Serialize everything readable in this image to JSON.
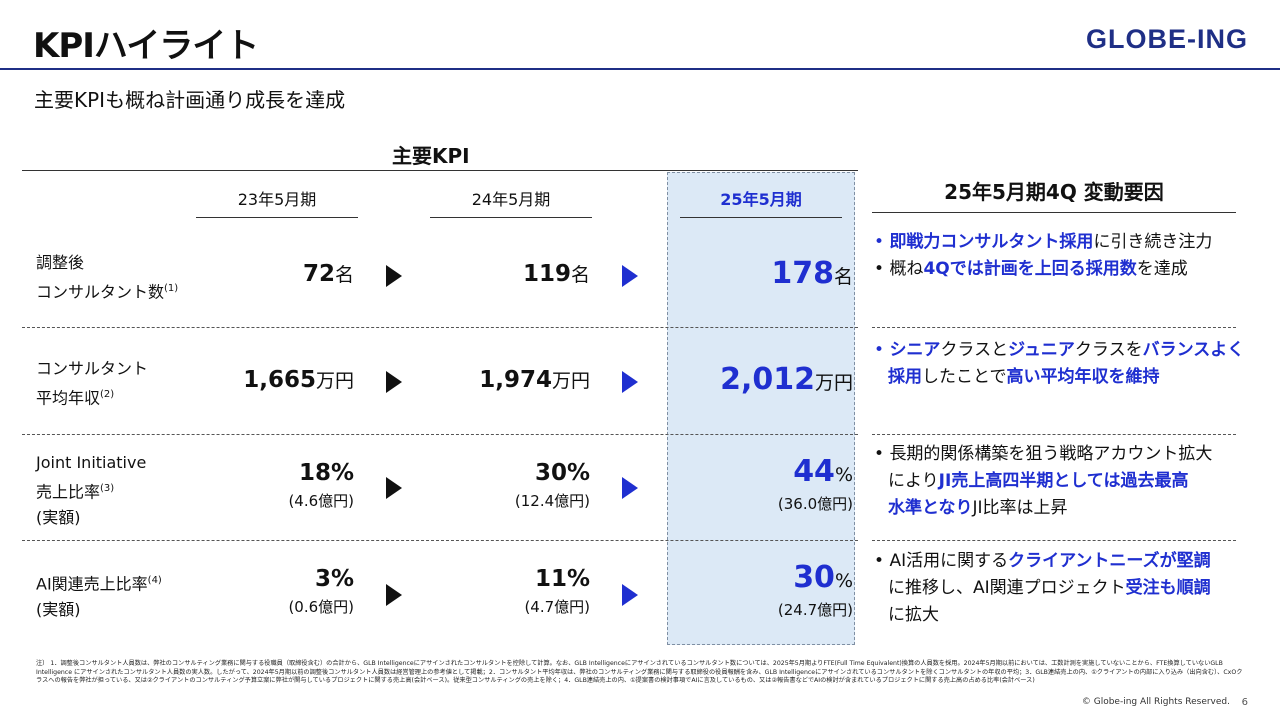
{
  "header": {
    "title": "KPIハイライト",
    "logo": "GLOBE-ING",
    "subtitle": "主要KPIも概ね計画通り成長を達成"
  },
  "table": {
    "heading": "主要KPI",
    "periods": [
      "23年5月期",
      "24年5月期",
      "25年5月期"
    ],
    "rows": [
      {
        "label1": "調整後",
        "label2": "コンサルタント数",
        "label3": "",
        "note": "(1)",
        "v1": "72",
        "u1": "名",
        "s1": "",
        "v2": "119",
        "u2": "名",
        "s2": "",
        "v3": "178",
        "u3": "名",
        "s3": ""
      },
      {
        "label1": "コンサルタント",
        "label2": "平均年収",
        "label3": "",
        "note": "(2)",
        "v1": "1,665",
        "u1": "万円",
        "s1": "",
        "v2": "1,974",
        "u2": "万円",
        "s2": "",
        "v3": "2,012",
        "u3": "万円",
        "s3": ""
      },
      {
        "label1": "Joint Initiative",
        "label2": "売上比率",
        "label3": "(実額)",
        "note": "(3)",
        "v1": "18%",
        "u1": "",
        "s1": "(4.6億円)",
        "v2": "30%",
        "u2": "",
        "s2": "(12.4億円)",
        "v3": "44",
        "u3": "%",
        "s3": "(36.0億円)"
      },
      {
        "label1": "AI関連売上比率",
        "label2": "(実額)",
        "label3": "",
        "note": "(4)",
        "v1": "3%",
        "u1": "",
        "s1": "(0.6億円)",
        "v2": "11%",
        "u2": "",
        "s2": "(4.7億円)",
        "v3": "30",
        "u3": "%",
        "s3": "(24.7億円)"
      }
    ]
  },
  "factors": {
    "heading": "25年5月期4Q 変動要因",
    "bullet": "•",
    "r1": {
      "a1": "即戦力コンサルタント採用",
      "a2": "に引き続き注力",
      "b1": "概ね",
      "b2": "4Qでは計画を上回る採用数",
      "b3": "を達成"
    },
    "r2": {
      "a1": "シニア",
      "a2": "クラスと",
      "a3": "ジュニア",
      "a4": "クラスを",
      "a5": "バランスよく",
      "a6": "採用",
      "a7": "したことで",
      "a8": "高い平均年収を維持"
    },
    "r3": {
      "a1": "長期的関係構築を狙う戦略アカウント拡大",
      "a2": "により",
      "a3": "JI売上高四半期としては過去最高",
      "a4": "水準となり",
      "a5": "JI比率は上昇"
    },
    "r4": {
      "a1": "AI活用に関する",
      "a2": "クライアントニーズが堅調",
      "a3": "に推移し、AI関連プロジェクト",
      "a4": "受注も順調",
      "a5": "に拡大"
    }
  },
  "footnote": "注） 1．調整後コンサルタント人員数は、弊社のコンサルティング業務に関与する役職員（取締役含む）の合計から、GLB Intelligenceにアサインされたコンサルタントを控除して計算。なお、GLB Intelligenceにアサインされているコンサルタント数については、2025年5月期よりFTE(Full Time Equivalent)換算の人員数を採用。2024年5月期以前においては、工数計測を実施していないことから、FTE換算していないGLB Intelligence にアサインされたコンサルタント人員数の実人数。したがって、2024年5月期以前の調整後コンサルタント人員数は経営管理上の参考値として掲載；2．コンサルタント平均年収は、弊社のコンサルティング業務に関与する取締役の役員報酬を含み、GLB Intelligenceにアサインされているコンサルタントを除くコンサルタントの年収の平均；3．GLB連結売上の内、①クライアントの内部に入り込み（出向含む）、CxOクラスへの報告を弊社が担っている、又は②クライアントのコンサルティング予算立案に弊社が関与しているプロジェクトに関する売上高(会計ベース)。従来型コンサルティングの売上を除く；4．GLB連結売上の内、①提案書の検討事項でAIに言及しているもの、又は②報告書などでAIの検討が含まれているプロジェクトに関する売上高の占める比率(会計ベース)",
  "copyright": "© Globe-ing All Rights Reserved.",
  "page_number": "6"
}
